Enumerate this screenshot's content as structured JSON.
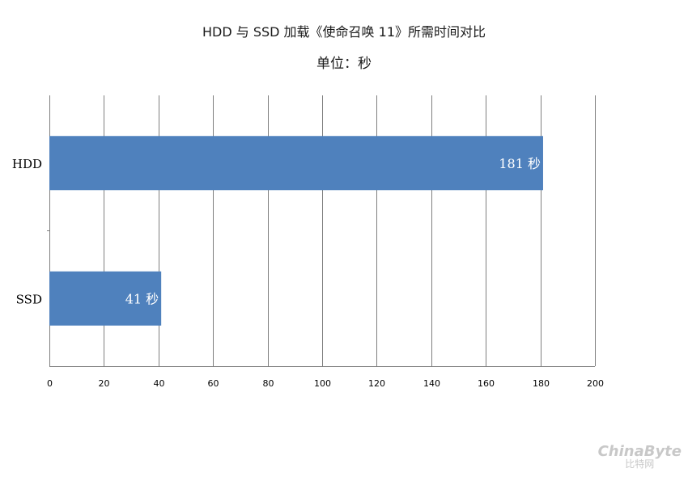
{
  "chart_data": {
    "type": "bar",
    "orientation": "horizontal",
    "title": "HDD 与 SSD 加载《使命召唤 11》所需时间对比",
    "subtitle": "单位：秒",
    "categories": [
      "HDD",
      "SSD"
    ],
    "values": [
      181,
      41
    ],
    "data_labels": [
      "181 秒",
      "41 秒"
    ],
    "xlim": [
      0,
      200
    ],
    "x_ticks": [
      "0",
      "20",
      "40",
      "60",
      "80",
      "100",
      "120",
      "140",
      "160",
      "180",
      "200"
    ],
    "grid": true,
    "legend": "none",
    "bar_color": "#4f81bd"
  },
  "watermark": {
    "line1": "ChinaByte",
    "line2": "比特网"
  }
}
